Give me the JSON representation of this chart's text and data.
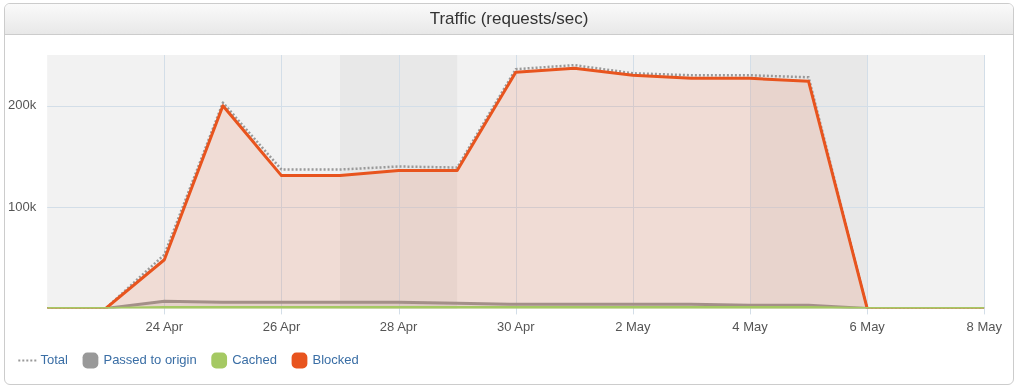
{
  "chart_data": {
    "type": "area",
    "title": "Traffic (requests/sec)",
    "x": [
      "--04-22",
      "--04-23",
      "--04-24",
      "--04-25",
      "--04-26",
      "--04-27",
      "--04-28",
      "--04-29",
      "--04-30",
      "--05-01",
      "--05-02",
      "--05-03",
      "--05-04",
      "--05-05",
      "--05-06",
      "--05-07",
      "--05-08"
    ],
    "series": [
      {
        "name": "Total",
        "type": "line",
        "color": "#999999",
        "line_style": "dotted",
        "values": [
          0,
          0,
          53000,
          203000,
          137000,
          137000,
          140000,
          139000,
          236000,
          240000,
          232000,
          230000,
          230000,
          228000,
          0,
          0,
          0
        ]
      },
      {
        "name": "Passed to origin",
        "color": "#999999",
        "values": [
          0,
          0,
          7000,
          6000,
          6000,
          6000,
          6000,
          5000,
          4000,
          4000,
          4000,
          4000,
          3000,
          3000,
          0,
          0,
          0
        ]
      },
      {
        "name": "Cached",
        "color": "#a5c963",
        "values": [
          0,
          0,
          1000,
          1000,
          1000,
          1000,
          1000,
          1000,
          1000,
          1000,
          1000,
          1000,
          1000,
          1000,
          0,
          0,
          0
        ]
      },
      {
        "name": "Blocked",
        "color": "#e8541e",
        "values": [
          0,
          0,
          48000,
          200000,
          131000,
          131000,
          136000,
          136000,
          233000,
          237000,
          230000,
          227000,
          227000,
          224000,
          0,
          0,
          0
        ]
      }
    ],
    "xlim": [
      "--04-22",
      "--05-08"
    ],
    "xticks": [
      {
        "value": "--04-24",
        "label": "24 Apr"
      },
      {
        "value": "--04-26",
        "label": "26 Apr"
      },
      {
        "value": "--04-28",
        "label": "28 Apr"
      },
      {
        "value": "--04-30",
        "label": "30 Apr"
      },
      {
        "value": "--05-02",
        "label": "2 May"
      },
      {
        "value": "--05-04",
        "label": "4 May"
      },
      {
        "value": "--05-06",
        "label": "6 May"
      },
      {
        "value": "--05-08",
        "label": "8 May"
      }
    ],
    "ylim": [
      0,
      250000
    ],
    "yticks": [
      {
        "value": 100000,
        "label": "100k"
      },
      {
        "value": 200000,
        "label": "200k"
      }
    ],
    "bands": [
      {
        "axis": "x",
        "from": "--04-27",
        "to": "--04-29",
        "color": "#e8e8e8"
      },
      {
        "axis": "x",
        "from": "--05-04",
        "to": "--05-06",
        "color": "#e8e8e8"
      }
    ],
    "grid": true,
    "legend": "bottom left",
    "marker": "none"
  }
}
